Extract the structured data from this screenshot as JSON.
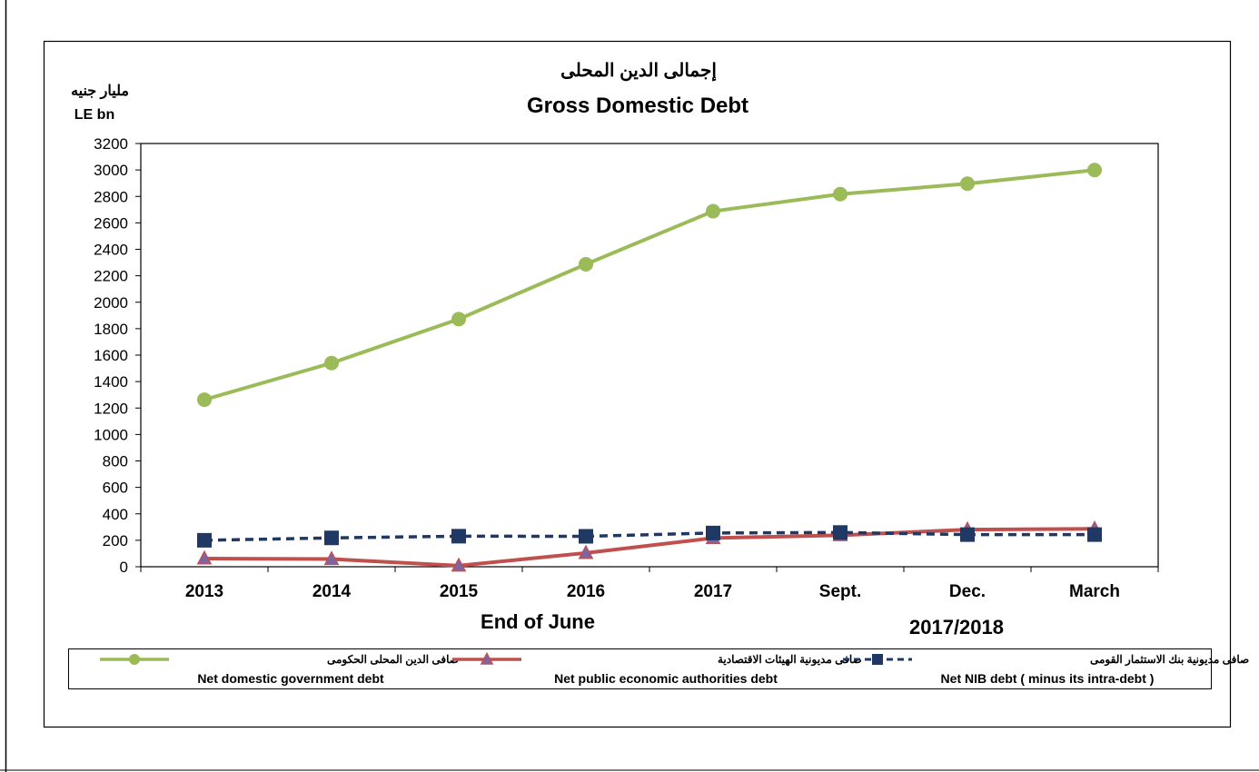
{
  "chart_data": {
    "type": "line",
    "title_ar": "إجمالى الدين المحلى",
    "title": "Gross Domestic Debt",
    "unit_ar": "مليار جنيه",
    "unit": "LE bn",
    "categories": [
      "2013",
      "2014",
      "2015",
      "2016",
      "2017",
      "Sept.",
      "Dec.",
      "March"
    ],
    "xlabel": "End of June",
    "xlabel_group": "2017/2018",
    "ylim": [
      0,
      3200
    ],
    "yticks": [
      "0",
      "200",
      "400",
      "600",
      "800",
      "1000",
      "1200",
      "1400",
      "1600",
      "1800",
      "2000",
      "2200",
      "2400",
      "2600",
      "2800",
      "3000",
      "3200"
    ],
    "grid": false,
    "legend_position": "bottom",
    "series": [
      {
        "name": "Net domestic government debt",
        "name_ar": "صافى الدين المحلى الحكومى",
        "values": [
          1263,
          1540,
          1872,
          2287,
          2688,
          2817,
          2896,
          2999
        ],
        "color": "#9BBB59",
        "marker": "circle",
        "dash": "solid"
      },
      {
        "name": "Net public economic authorities debt",
        "name_ar": "صافى مديونية الهيئات الاقتصادية",
        "values": [
          62,
          58,
          8,
          104,
          217,
          238,
          281,
          287
        ],
        "color": "#C0504D",
        "marker": "triangle",
        "dash": "solid"
      },
      {
        "name": "Net NIB debt ( minus its intra-debt )",
        "name_ar": "صافى مديونية بنك الاستثمار القومى",
        "values": [
          200,
          218,
          231,
          230,
          255,
          259,
          243,
          243
        ],
        "color": "#1F3864",
        "marker": "square",
        "dash": "dashed"
      }
    ]
  }
}
